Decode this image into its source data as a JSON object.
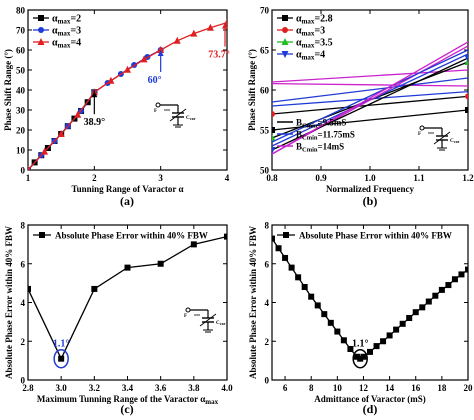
{
  "chart_data": [
    {
      "panel_label": "(a)",
      "type": "line",
      "xlabel": "Tunning Range of Varactor α",
      "ylabel": "Phase Shift Range (°)",
      "xlim": [
        1,
        4
      ],
      "ylim": [
        0,
        80
      ],
      "xticks": [
        "1",
        "2",
        "3",
        "4"
      ],
      "yticks": [
        "0",
        "10",
        "20",
        "30",
        "40",
        "50",
        "60",
        "70",
        "80"
      ],
      "legend_position": "top-left",
      "series": [
        {
          "name": "α_max=2",
          "color": "#000000",
          "marker": "square",
          "x": [
            1.0,
            1.1,
            1.2,
            1.3,
            1.4,
            1.5,
            1.6,
            1.7,
            1.8,
            1.9,
            2.0
          ],
          "y": [
            0,
            3.8,
            7.4,
            11.0,
            14.5,
            18.0,
            21.9,
            25.7,
            29.5,
            33.9,
            38.9
          ]
        },
        {
          "name": "α_max=3",
          "color": "#1f3bd6",
          "marker": "circle",
          "x": [
            1.0,
            1.2,
            1.4,
            1.6,
            1.8,
            2.0,
            2.2,
            2.4,
            2.6,
            2.8,
            3.0
          ],
          "y": [
            0,
            7.4,
            14.5,
            21.9,
            29.5,
            38.9,
            43.5,
            48.0,
            52.5,
            56.5,
            60.0
          ]
        },
        {
          "name": "α_max=4",
          "color": "#e02020",
          "marker": "triangle",
          "x": [
            1.0,
            1.25,
            1.5,
            1.75,
            2.0,
            2.25,
            2.5,
            2.75,
            3.0,
            3.25,
            3.5,
            3.75,
            4.0
          ],
          "y": [
            0,
            9.2,
            18.0,
            27.6,
            38.9,
            44.6,
            50.1,
            55.3,
            60.0,
            64.6,
            68.2,
            71.1,
            73.7
          ]
        }
      ],
      "annotations": [
        {
          "text": "38.9°",
          "x": 2.0,
          "y": 38.9,
          "color": "#000000"
        },
        {
          "text": "60°",
          "x": 3.0,
          "y": 60.0,
          "color": "#1f3bd6"
        },
        {
          "text": "73.7°",
          "x": 4.0,
          "y": 73.7,
          "color": "#e02020"
        }
      ]
    },
    {
      "panel_label": "(b)",
      "type": "line",
      "xlabel": "Normalized Frequency",
      "ylabel": "Phase Shift Range (°)",
      "xlim": [
        0.8,
        1.2
      ],
      "ylim": [
        50,
        70
      ],
      "xticks": [
        "0.8",
        "0.9",
        "1.0",
        "1.1",
        "1.2"
      ],
      "yticks": [
        "50",
        "55",
        "60",
        "65",
        "70"
      ],
      "legend_position": "top-left",
      "line_style_legend": [
        {
          "name": "B_Cmin=9.5mS",
          "color": "#000000",
          "line_label": "B",
          "sub": "Cmin",
          "value": "=9.5mS"
        },
        {
          "name": "B_Cmin=11.75mS",
          "color": "#1f3bd6",
          "line_label": "B",
          "sub": "Cmin",
          "value": "=11.75mS"
        },
        {
          "name": "B_Cmin=14mS",
          "color": "#cc22cc",
          "line_label": "B",
          "sub": "Cmin",
          "value": "=14mS"
        }
      ],
      "series": [
        {
          "name": "α_max=2.8",
          "color": "#000000",
          "marker": "square",
          "line_color": "#000000",
          "x": [
            0.8,
            1.2
          ],
          "y": [
            55.0,
            57.5
          ]
        },
        {
          "name": "α_max=2.8",
          "color": "#1f3bd6",
          "line_color": "#1f3bd6",
          "x": [
            0.8,
            1.2
          ],
          "y": [
            58.0,
            59.8
          ]
        },
        {
          "name": "α_max=2.8",
          "color": "#cc22cc",
          "line_color": "#cc22cc",
          "x": [
            0.8,
            1.2
          ],
          "y": [
            60.8,
            60.5
          ]
        },
        {
          "name": "α_max=3",
          "color": "#e02020",
          "marker": "circle",
          "line_color": "#000000",
          "x": [
            0.8,
            1.2
          ],
          "y": [
            57.0,
            59.2
          ]
        },
        {
          "name": "α_max=3",
          "color": "#e02020",
          "line_color": "#1f3bd6",
          "x": [
            0.8,
            1.2
          ],
          "y": [
            58.5,
            61.5
          ]
        },
        {
          "name": "α_max=3",
          "color": "#e02020",
          "line_color": "#cc22cc",
          "x": [
            0.8,
            1.2
          ],
          "y": [
            61.0,
            62.5
          ]
        },
        {
          "name": "α_max=3.5",
          "color": "#22bb22",
          "marker": "triangle",
          "line_color": "#000000",
          "x": [
            0.8,
            1.2
          ],
          "y": [
            54.0,
            63.5
          ]
        },
        {
          "name": "α_max=3.5",
          "color": "#22bb22",
          "line_color": "#1f3bd6",
          "x": [
            0.8,
            1.2
          ],
          "y": [
            53.0,
            64.5
          ]
        },
        {
          "name": "α_max=3.5",
          "color": "#22bb22",
          "line_color": "#cc22cc",
          "x": [
            0.8,
            1.2
          ],
          "y": [
            52.0,
            65.5
          ]
        },
        {
          "name": "α_max=4",
          "color": "#1f3bd6",
          "marker": "triangle-down",
          "line_color": "#000000",
          "x": [
            0.8,
            1.2
          ],
          "y": [
            52.5,
            64.0
          ]
        },
        {
          "name": "α_max=4",
          "color": "#1f3bd6",
          "line_color": "#1f3bd6",
          "x": [
            0.8,
            1.2
          ],
          "y": [
            53.5,
            65.0
          ]
        },
        {
          "name": "α_max=4",
          "color": "#1f3bd6",
          "line_color": "#cc22cc",
          "x": [
            0.8,
            1.2
          ],
          "y": [
            52.0,
            66.0
          ]
        }
      ],
      "legend_entries": [
        {
          "name": "α_max=2.8",
          "color": "#000000",
          "marker": "square",
          "base": "α",
          "sub": "max",
          "value": "=2.8"
        },
        {
          "name": "α_max=3",
          "color": "#e02020",
          "marker": "circle",
          "base": "α",
          "sub": "max",
          "value": "=3"
        },
        {
          "name": "α_max=3.5",
          "color": "#22bb22",
          "marker": "triangle",
          "base": "α",
          "sub": "max",
          "value": "=3.5"
        },
        {
          "name": "α_max=4",
          "color": "#1f3bd6",
          "marker": "triangle-down",
          "base": "α",
          "sub": "max",
          "value": "=4"
        }
      ]
    },
    {
      "panel_label": "(c)",
      "type": "line",
      "xlabel": "Maximum Tunning Range of the Varactor α_max",
      "ylabel": "Absolute Phase Error within 40% FBW",
      "xlim": [
        2.8,
        4.0
      ],
      "ylim": [
        0,
        8
      ],
      "xticks": [
        "2.8",
        "3.0",
        "3.2",
        "3.4",
        "3.6",
        "3.8",
        "4.0"
      ],
      "yticks": [
        "0",
        "2",
        "4",
        "6",
        "8"
      ],
      "legend_position": "top-left",
      "series": [
        {
          "name": "Absolute Phase Error within  40% FBW",
          "color": "#000000",
          "marker": "square",
          "x": [
            2.8,
            3.0,
            3.2,
            3.4,
            3.6,
            3.8,
            4.0
          ],
          "y": [
            4.7,
            1.1,
            4.7,
            5.8,
            6.0,
            7.0,
            7.4
          ]
        }
      ],
      "annotations": [
        {
          "text": "1.1°",
          "x": 3.0,
          "y": 1.1,
          "color": "#1f3bd6"
        }
      ]
    },
    {
      "panel_label": "(d)",
      "type": "line",
      "xlabel": "Admittance of Varactor (mS)",
      "ylabel": "Absolute Phase Error within  40% FBW",
      "xlim": [
        5,
        20
      ],
      "ylim": [
        0,
        8
      ],
      "xticks": [
        "6",
        "8",
        "10",
        "12",
        "14",
        "16",
        "18",
        "20"
      ],
      "yticks": [
        "0",
        "2",
        "4",
        "6",
        "8"
      ],
      "legend_position": "top-left",
      "series": [
        {
          "name": "Absolute Phase Error within  40% FBW",
          "color": "#000000",
          "marker": "square",
          "x": [
            5.0,
            5.5,
            6.0,
            6.5,
            7.0,
            7.5,
            8.0,
            8.5,
            9.0,
            9.5,
            10.0,
            10.5,
            11.0,
            11.5,
            11.75,
            12.0,
            12.5,
            13.0,
            13.5,
            14.0,
            14.5,
            15.0,
            15.5,
            16.0,
            16.5,
            17.0,
            17.5,
            18.0,
            18.5,
            19.0,
            19.5,
            20.0
          ],
          "y": [
            7.3,
            6.8,
            6.3,
            5.8,
            5.3,
            4.8,
            4.3,
            3.85,
            3.4,
            2.95,
            2.5,
            2.05,
            1.6,
            1.2,
            1.1,
            1.2,
            1.45,
            1.75,
            2.0,
            2.3,
            2.6,
            2.9,
            3.2,
            3.5,
            3.75,
            4.05,
            4.35,
            4.65,
            4.9,
            5.2,
            5.45,
            5.7
          ]
        }
      ],
      "annotations": [
        {
          "text": "1.1°",
          "x": 11.75,
          "y": 1.1,
          "color": "#000000"
        }
      ]
    }
  ],
  "inset": {
    "port_label": "F",
    "cap_label": "C",
    "cap_sub": "var"
  }
}
